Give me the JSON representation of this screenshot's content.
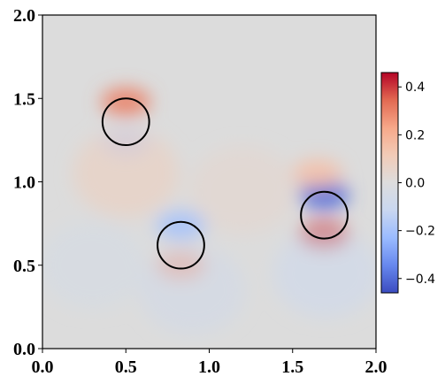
{
  "chart_data": {
    "type": "heatmap",
    "title": "",
    "xlabel": "",
    "ylabel": "",
    "xlim": [
      0.0,
      2.0
    ],
    "ylim": [
      0.0,
      2.0
    ],
    "xticks": [
      0.0,
      0.5,
      1.0,
      1.5,
      2.0
    ],
    "xtick_labels": [
      "0.0",
      "0.5",
      "1.0",
      "1.5",
      "2.0"
    ],
    "yticks": [
      0.0,
      0.5,
      1.0,
      1.5,
      2.0
    ],
    "ytick_labels": [
      "0.0",
      "0.5",
      "1.0",
      "1.5",
      "2.0"
    ],
    "colormap": "coolwarm",
    "background_color": "#dcdcdc",
    "grid": false,
    "colorbar": {
      "range": [
        -0.46,
        0.46
      ],
      "ticks": [
        0.4,
        0.2,
        0.0,
        -0.2,
        -0.4
      ],
      "tick_labels": [
        "0.4",
        "0.2",
        "0.0",
        "−0.2",
        "−0.4"
      ],
      "colors": [
        "#3b4cc0",
        "#6788ee",
        "#9abbff",
        "#c9d7f0",
        "#dddddd",
        "#f2cbb7",
        "#f7a889",
        "#e26952",
        "#b40426"
      ]
    },
    "circles": [
      {
        "x": 0.5,
        "y": 1.36,
        "r": 0.14
      },
      {
        "x": 0.83,
        "y": 0.62,
        "r": 0.14
      },
      {
        "x": 1.69,
        "y": 0.8,
        "r": 0.14
      }
    ],
    "field_features": [
      {
        "x": 0.5,
        "y": 1.48,
        "value": 0.3
      },
      {
        "x": 0.5,
        "y": 1.24,
        "value": -0.15
      },
      {
        "x": 0.83,
        "y": 0.74,
        "value": -0.2
      },
      {
        "x": 0.83,
        "y": 0.5,
        "value": 0.25
      },
      {
        "x": 1.69,
        "y": 0.92,
        "value": -0.4
      },
      {
        "x": 1.69,
        "y": 0.68,
        "value": 0.38
      },
      {
        "x": 1.65,
        "y": 1.05,
        "value": 0.15
      },
      {
        "x": 1.7,
        "y": 0.45,
        "value": -0.1
      },
      {
        "x": 0.5,
        "y": 1.05,
        "value": 0.1
      },
      {
        "x": 1.2,
        "y": 0.95,
        "value": 0.05
      },
      {
        "x": 0.9,
        "y": 0.35,
        "value": -0.08
      },
      {
        "x": 0.3,
        "y": 0.5,
        "value": -0.05
      }
    ]
  }
}
